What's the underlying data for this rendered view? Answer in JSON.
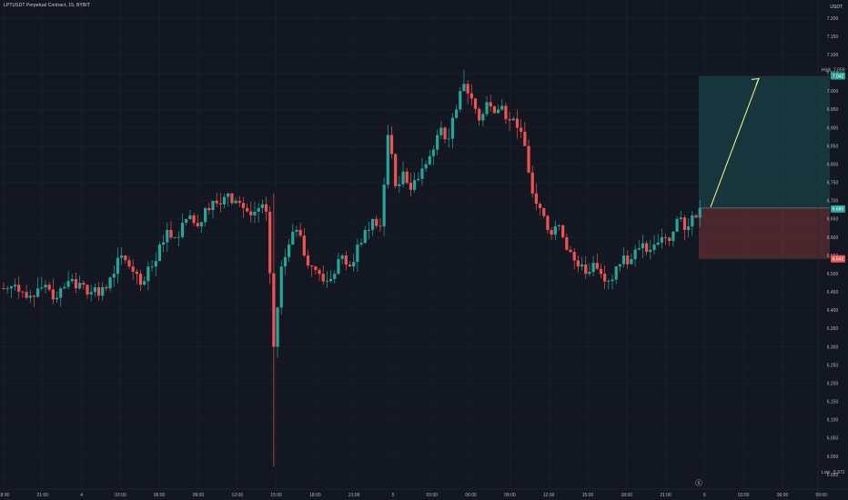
{
  "header": {
    "symbol_title": "LPTUSDT Perpetual Contract, 15, BYBIT",
    "currency": "USDT"
  },
  "colors": {
    "background": "#131722",
    "grid": "#1e222d",
    "up": "#26a69a",
    "down": "#ef5350",
    "profit_zone": "rgba(38,166,154,0.22)",
    "loss_zone": "rgba(239,83,80,0.25)",
    "arrow": "#e8f08c",
    "scale_bg": "#131722"
  },
  "price_scale": {
    "ticks": [
      "7.200",
      "7.150",
      "7.100",
      "7.050",
      "7.000",
      "6.950",
      "6.900",
      "6.850",
      "6.800",
      "6.750",
      "6.700",
      "6.650",
      "6.600",
      "6.550",
      "6.500",
      "6.450",
      "6.400",
      "6.350",
      "6.300",
      "6.250",
      "6.200",
      "6.150",
      "6.100",
      "6.050",
      "6.000",
      "5.950"
    ],
    "high_label": "High",
    "high_value": "7.059",
    "low_label": "Low",
    "low_value": "5.972",
    "target_tag": "7.042",
    "current_tag": "6.680",
    "stop_tag": "6.541"
  },
  "time_scale": {
    "ticks": [
      "18:00",
      "21:00",
      "4",
      "03:00",
      "06:00",
      "09:00",
      "12:00",
      "15:00",
      "18:00",
      "21:00",
      "5",
      "03:00",
      "06:00",
      "09:00",
      "12:00",
      "15:00",
      "18:00",
      "21:00",
      "6",
      "03:00",
      "06:00",
      "09:00"
    ],
    "session_marker": "6"
  },
  "position_tool": {
    "entry": 6.68,
    "target": 7.042,
    "stop": 6.541
  },
  "chart_data": {
    "type": "candlestick",
    "title": "LPTUSDT Perpetual Contract, 15, BYBIT",
    "interval": "15",
    "ylim": [
      5.95,
      7.22
    ],
    "x": [
      "18:00",
      "21:00",
      "4",
      "03:00",
      "06:00",
      "09:00",
      "12:00",
      "15:00",
      "18:00",
      "21:00",
      "5",
      "03:00",
      "06:00",
      "09:00",
      "12:00",
      "15:00",
      "18:00",
      "21:00",
      "6"
    ],
    "close_path": [
      6.46,
      6.47,
      6.45,
      6.44,
      6.46,
      6.47,
      6.43,
      6.46,
      6.48,
      6.46,
      6.47,
      6.45,
      6.44,
      6.46,
      6.5,
      6.55,
      6.52,
      6.5,
      6.48,
      6.52,
      6.58,
      6.62,
      6.6,
      6.64,
      6.66,
      6.63,
      6.68,
      6.7,
      6.69,
      6.72,
      6.7,
      6.68,
      6.66,
      6.68,
      6.67,
      6.3,
      6.52,
      6.58,
      6.62,
      6.55,
      6.52,
      6.5,
      6.48,
      6.5,
      6.55,
      6.52,
      6.58,
      6.62,
      6.65,
      6.63,
      6.88,
      6.74,
      6.78,
      6.73,
      6.76,
      6.8,
      6.84,
      6.9,
      6.87,
      6.95,
      7.02,
      6.98,
      6.92,
      6.97,
      6.94,
      6.96,
      6.92,
      6.9,
      6.85,
      6.72,
      6.68,
      6.62,
      6.63,
      6.6,
      6.56,
      6.52,
      6.5,
      6.53,
      6.5,
      6.48,
      6.52,
      6.55,
      6.54,
      6.57,
      6.56,
      6.58,
      6.6,
      6.59,
      6.65,
      6.62,
      6.66,
      6.68
    ],
    "high": 7.059,
    "low": 5.972,
    "last": 6.68,
    "long_position": {
      "entry": 6.68,
      "target": 7.042,
      "stop": 6.541
    },
    "grid": true
  }
}
